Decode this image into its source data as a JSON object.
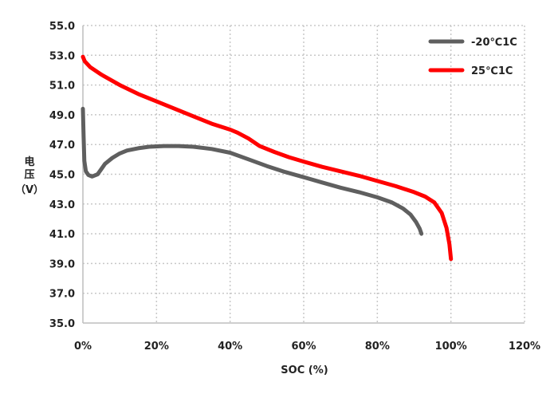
{
  "chart_data": {
    "type": "line",
    "xlabel": "SOC (%)",
    "ylabel": [
      "电",
      "压",
      "（V）"
    ],
    "xlim": [
      0,
      120
    ],
    "ylim": [
      35,
      55
    ],
    "x_ticks": [
      0,
      20,
      40,
      60,
      80,
      100,
      120
    ],
    "x_tick_labels": [
      "0%",
      "20%",
      "40%",
      "60%",
      "80%",
      "100%",
      "120%"
    ],
    "y_ticks": [
      35,
      37,
      39,
      41,
      43,
      45,
      47,
      49,
      51,
      53,
      55
    ],
    "y_tick_labels": [
      "35.0",
      "37.0",
      "39.0",
      "41.0",
      "43.0",
      "45.0",
      "47.0",
      "49.0",
      "51.0",
      "53.0",
      "55.0"
    ],
    "grid": true,
    "legend_position": "top-right",
    "series": [
      {
        "name": "-20℃1C",
        "color": "#5f5f5f",
        "points": [
          [
            0,
            49.4
          ],
          [
            0.2,
            47.5
          ],
          [
            0.4,
            45.9
          ],
          [
            0.8,
            45.2
          ],
          [
            1.5,
            44.95
          ],
          [
            2.5,
            44.85
          ],
          [
            4,
            45.0
          ],
          [
            5,
            45.35
          ],
          [
            6,
            45.7
          ],
          [
            8,
            46.1
          ],
          [
            10,
            46.4
          ],
          [
            12,
            46.6
          ],
          [
            15,
            46.75
          ],
          [
            18,
            46.85
          ],
          [
            22,
            46.9
          ],
          [
            26,
            46.9
          ],
          [
            30,
            46.85
          ],
          [
            35,
            46.7
          ],
          [
            40,
            46.45
          ],
          [
            45,
            46.0
          ],
          [
            50,
            45.55
          ],
          [
            55,
            45.15
          ],
          [
            60,
            44.8
          ],
          [
            65,
            44.45
          ],
          [
            70,
            44.1
          ],
          [
            75,
            43.8
          ],
          [
            80,
            43.45
          ],
          [
            84,
            43.1
          ],
          [
            87,
            42.7
          ],
          [
            89,
            42.3
          ],
          [
            90.5,
            41.8
          ],
          [
            91.5,
            41.35
          ],
          [
            92,
            41.0
          ]
        ]
      },
      {
        "name": "25℃1C",
        "color": "#ff0000",
        "points": [
          [
            0,
            52.9
          ],
          [
            0.5,
            52.6
          ],
          [
            2,
            52.2
          ],
          [
            5,
            51.7
          ],
          [
            10,
            51.0
          ],
          [
            15,
            50.4
          ],
          [
            20,
            49.9
          ],
          [
            25,
            49.4
          ],
          [
            30,
            48.9
          ],
          [
            35,
            48.4
          ],
          [
            40,
            48.0
          ],
          [
            42,
            47.8
          ],
          [
            45,
            47.4
          ],
          [
            48,
            46.9
          ],
          [
            52,
            46.5
          ],
          [
            56,
            46.15
          ],
          [
            60,
            45.85
          ],
          [
            65,
            45.5
          ],
          [
            70,
            45.2
          ],
          [
            75,
            44.9
          ],
          [
            80,
            44.55
          ],
          [
            85,
            44.2
          ],
          [
            90,
            43.8
          ],
          [
            93,
            43.5
          ],
          [
            95.5,
            43.1
          ],
          [
            97.5,
            42.4
          ],
          [
            98.8,
            41.4
          ],
          [
            99.6,
            40.3
          ],
          [
            100,
            39.3
          ]
        ]
      }
    ]
  }
}
